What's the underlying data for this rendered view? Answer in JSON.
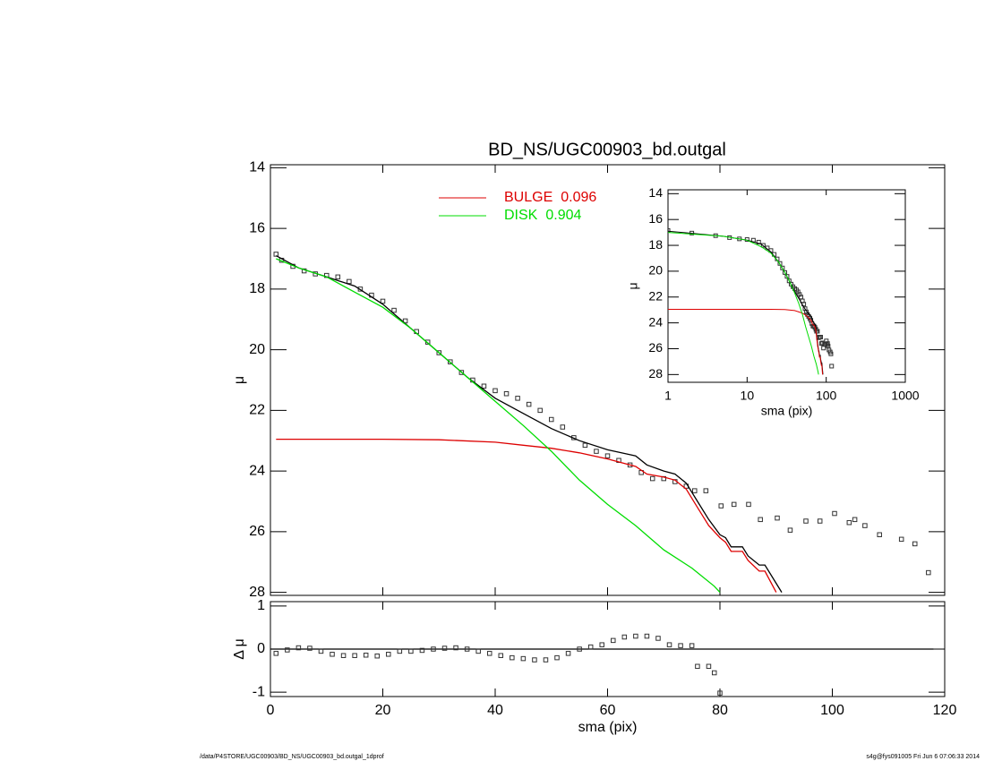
{
  "footer_left": "/data/P4STORE/UGC00903/BD_NS/UGC00903_bd.outgal_1dprof",
  "footer_right": "s4g@fys091005  Fri Jun  6 07:06:33 2014",
  "chart_data": [
    {
      "type": "line",
      "title": "BD_NS/UGC00903_bd.outgal",
      "ylabel": "μ",
      "xlim": [
        0,
        120
      ],
      "xticks": [
        0,
        20,
        40,
        60,
        80,
        100,
        120
      ],
      "xticklabels": false,
      "ylim": [
        28.1,
        13.9
      ],
      "yticks": [
        14,
        16,
        18,
        20,
        22,
        24,
        26,
        28
      ],
      "series": [
        {
          "style": "squares",
          "color": "#333333",
          "x": [
            1,
            2,
            4,
            6,
            8,
            10,
            12,
            14,
            16,
            18,
            20,
            22,
            24,
            26,
            28,
            30,
            32,
            34,
            36,
            38,
            40,
            42,
            44,
            46,
            48,
            50,
            52,
            54,
            56,
            58,
            60,
            62,
            64,
            66,
            68,
            70,
            72,
            74,
            75.5,
            77.5,
            80.2,
            82.5,
            85.1,
            87.2,
            90.2,
            92.5,
            95.3,
            97.8,
            100.4,
            103,
            104,
            105.8,
            108.4,
            112.3,
            114.7,
            117.1
          ],
          "values": [
            16.85,
            17.05,
            17.25,
            17.4,
            17.5,
            17.55,
            17.6,
            17.75,
            18.0,
            18.2,
            18.4,
            18.7,
            19.05,
            19.4,
            19.75,
            20.1,
            20.4,
            20.75,
            21.0,
            21.2,
            21.35,
            21.45,
            21.6,
            21.8,
            22.0,
            22.3,
            22.55,
            22.9,
            23.15,
            23.35,
            23.5,
            23.65,
            23.8,
            24.05,
            24.25,
            24.25,
            24.35,
            24.5,
            24.65,
            24.65,
            25.15,
            25.1,
            25.1,
            25.6,
            25.55,
            25.95,
            25.65,
            25.65,
            25.4,
            25.7,
            25.6,
            25.8,
            26.1,
            26.25,
            26.4,
            27.35
          ]
        },
        {
          "style": "line",
          "color": "#000000",
          "x": [
            1,
            5,
            10,
            15,
            20,
            25,
            30,
            35,
            40,
            45,
            50,
            55,
            60,
            65,
            67,
            70,
            72,
            74,
            76,
            78,
            80,
            81,
            82,
            84,
            85,
            87,
            88,
            91
          ],
          "values": [
            16.9,
            17.3,
            17.6,
            17.9,
            18.5,
            19.3,
            20.1,
            20.9,
            21.6,
            22.1,
            22.6,
            23.0,
            23.3,
            23.5,
            23.8,
            24.0,
            24.1,
            24.4,
            25.0,
            25.6,
            26.1,
            26.2,
            26.5,
            26.5,
            26.8,
            27.1,
            27.1,
            28.0
          ]
        },
        {
          "name": "BULGE",
          "fraction": 0.096,
          "style": "line",
          "color": "#dd0000",
          "x": [
            1,
            20,
            30,
            40,
            45,
            50,
            55,
            60,
            65,
            67,
            70,
            72,
            74,
            76,
            78,
            80,
            81,
            82,
            84,
            85,
            87,
            88,
            90
          ],
          "values": [
            22.95,
            22.95,
            22.97,
            23.05,
            23.15,
            23.25,
            23.4,
            23.6,
            23.85,
            24.1,
            24.2,
            24.3,
            24.6,
            25.2,
            25.8,
            26.2,
            26.35,
            26.65,
            26.65,
            26.95,
            27.3,
            27.3,
            28.0
          ]
        },
        {
          "name": "DISK",
          "fraction": 0.904,
          "style": "line",
          "color": "#00dd00",
          "x": [
            1,
            5,
            10,
            15,
            20,
            25,
            30,
            35,
            40,
            45,
            50,
            55,
            60,
            65,
            70,
            75,
            79,
            80
          ],
          "values": [
            17.0,
            17.3,
            17.6,
            18.1,
            18.6,
            19.3,
            20.1,
            20.9,
            21.7,
            22.5,
            23.35,
            24.3,
            25.1,
            25.8,
            26.6,
            27.2,
            27.8,
            28.0
          ]
        }
      ]
    },
    {
      "type": "line",
      "ylabel": "Δ μ",
      "xlabel": "sma (pix)",
      "xlim": [
        0,
        120
      ],
      "xticks": [
        0,
        20,
        40,
        60,
        80,
        100,
        120
      ],
      "ylim": [
        -1.1,
        1.1
      ],
      "yticks": [
        -1,
        0,
        1
      ],
      "series": [
        {
          "style": "line",
          "color": "#000000",
          "x": [
            0,
            118
          ],
          "values": [
            0,
            0
          ]
        },
        {
          "style": "squares",
          "color": "#333333",
          "x": [
            1,
            3,
            5,
            7,
            9,
            11,
            13,
            15,
            17,
            19,
            21,
            23,
            25,
            27,
            29,
            31,
            33,
            35,
            37,
            39,
            41,
            43,
            45,
            47,
            49,
            51,
            53,
            55,
            57,
            59,
            61,
            63,
            65,
            67,
            69,
            71,
            73,
            75,
            76,
            78,
            79,
            80
          ],
          "values": [
            -0.1,
            -0.02,
            0.03,
            0.02,
            -0.05,
            -0.12,
            -0.15,
            -0.15,
            -0.14,
            -0.16,
            -0.12,
            -0.05,
            -0.05,
            -0.03,
            0.0,
            0.02,
            0.03,
            0.0,
            -0.05,
            -0.1,
            -0.15,
            -0.2,
            -0.22,
            -0.25,
            -0.25,
            -0.2,
            -0.1,
            0.0,
            0.05,
            0.1,
            0.2,
            0.28,
            0.3,
            0.3,
            0.25,
            0.1,
            0.08,
            0.08,
            -0.4,
            -0.4,
            -0.55,
            -1.02
          ]
        }
      ]
    },
    {
      "type": "line",
      "log_x": true,
      "xlabel": "sma (pix)",
      "ylabel": "μ",
      "xlim": [
        1,
        1000
      ],
      "xticks": [
        1,
        10,
        100,
        1000
      ],
      "ylim": [
        28.6,
        13.7
      ],
      "yticks": [
        14,
        16,
        18,
        20,
        22,
        24,
        26,
        28
      ]
    }
  ]
}
